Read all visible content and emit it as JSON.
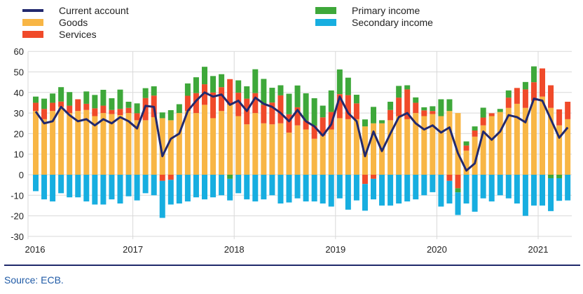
{
  "chart_data": {
    "type": "bar",
    "stacked": true,
    "title": "",
    "xlabel": "",
    "ylabel": "",
    "ylim": [
      -30,
      60
    ],
    "yticks": [
      -30,
      -20,
      -10,
      0,
      10,
      20,
      30,
      40,
      50,
      60
    ],
    "xtick_labels": [
      "2016",
      "2017",
      "2018",
      "2019",
      "2020",
      "2021"
    ],
    "frequency": "monthly, Jan 2016 – Apr 2021",
    "grid": true,
    "legend": {
      "placement": "top",
      "entries": [
        "Current account",
        "Goods",
        "Services",
        "Primary income",
        "Secondary income"
      ]
    },
    "colors": {
      "current_account": "#22296e",
      "goods": "#f8b645",
      "services": "#f04a2a",
      "primary": "#3ea83a",
      "secondary": "#17aee0"
    },
    "series": [
      {
        "name": "Goods",
        "kind": "bar",
        "values": [
          31,
          27,
          31,
          33,
          30,
          31,
          31.5,
          28.5,
          30,
          29.5,
          29,
          30,
          26.5,
          26.5,
          28,
          27.5,
          26.5,
          30,
          31,
          30,
          34,
          27.5,
          31,
          34,
          28.5,
          24.5,
          30,
          25,
          24.5,
          25,
          20.5,
          24,
          22,
          17.5,
          19,
          22,
          27.5,
          27,
          27,
          23.5,
          25,
          25,
          26.5,
          28.5,
          27,
          30,
          28.5,
          29.5,
          28.5,
          31,
          30,
          11.7,
          18.5,
          24,
          28.5,
          30.5,
          32.5,
          34.5,
          32.5,
          36,
          38,
          32.5,
          24,
          27
        ]
      },
      {
        "name": "Services",
        "kind": "bar",
        "values": [
          4,
          5,
          4,
          2.6,
          3.6,
          5.7,
          3,
          3.8,
          3.6,
          2,
          3,
          2.5,
          3.4,
          10.8,
          10.5,
          -3,
          -2.5,
          0,
          7.4,
          9.7,
          10,
          12.5,
          11.6,
          12.5,
          11.4,
          12.5,
          9.7,
          9,
          10.6,
          13.6,
          8.9,
          8.8,
          4.3,
          6.3,
          8.9,
          8.5,
          11.7,
          11.7,
          7.7,
          -4.5,
          -2,
          0,
          5,
          9,
          14.5,
          5,
          2.8,
          1.5,
          0,
          -3,
          -6.6,
          2.5,
          3,
          3.8,
          1.4,
          0,
          5,
          7.7,
          9,
          9,
          13.7,
          11,
          7.8,
          8.5
        ]
      },
      {
        "name": "Primary income",
        "kind": "bar",
        "values": [
          3,
          5,
          4.5,
          7,
          6.6,
          0,
          6,
          6.5,
          7.7,
          5.7,
          9.4,
          3,
          4.8,
          4.8,
          4.5,
          2.8,
          4.9,
          4.3,
          6,
          7.7,
          8.5,
          8,
          6.3,
          -2,
          6,
          6,
          11.6,
          12.6,
          7.2,
          4.9,
          10,
          10.6,
          13.3,
          13.4,
          5.7,
          10.5,
          12,
          8.5,
          4.2,
          3.4,
          8,
          1.5,
          4,
          5.7,
          2,
          2.6,
          1.5,
          2.3,
          8.2,
          5.7,
          -2,
          2,
          2,
          4.8,
          0,
          1.5,
          3.5,
          0,
          3.6,
          7.7,
          0,
          -1.7,
          -1.7,
          0
        ]
      },
      {
        "name": "Secondary income",
        "kind": "bar",
        "values": [
          -8,
          -12,
          -13,
          -9,
          -11,
          -11,
          -13,
          -14.5,
          -14.5,
          -12,
          -14,
          -10.5,
          -12.5,
          -9,
          -10,
          -18,
          -12,
          -14,
          -13,
          -11,
          -12,
          -11,
          -10,
          -10.5,
          -9,
          -12,
          -13,
          -12,
          -10,
          -14,
          -13.5,
          -11.5,
          -13,
          -13,
          -14,
          -15.5,
          -11.5,
          -17,
          -12.5,
          -13,
          -10,
          -15,
          -15,
          -14,
          -13,
          -12,
          -10,
          -8.5,
          -15.5,
          -11,
          -11,
          -14,
          -18,
          -11.5,
          -13,
          -10,
          -11.5,
          -14,
          -20,
          -15,
          -15,
          -16,
          -11,
          -12.5
        ]
      },
      {
        "name": "Current account",
        "kind": "line",
        "values": [
          30.7,
          25,
          26,
          33,
          29,
          26,
          27,
          24,
          27,
          25,
          28,
          26,
          22.5,
          33.5,
          33,
          9,
          17.5,
          20,
          31,
          36,
          40,
          38,
          39,
          34,
          36,
          31,
          37.5,
          34.5,
          33,
          30,
          26,
          31.5,
          26,
          23.5,
          19,
          24.5,
          38,
          30,
          26,
          9,
          21,
          11.5,
          20,
          28,
          30,
          25,
          22,
          24,
          20.5,
          23,
          10.5,
          2,
          5.5,
          21,
          17,
          21,
          29,
          28,
          25.5,
          37,
          36,
          27,
          18,
          23
        ]
      }
    ]
  },
  "legend": {
    "current_account": "Current account",
    "goods": "Goods",
    "services": "Services",
    "primary": "Primary income",
    "secondary": "Secondary income"
  },
  "source": "Source: ECB."
}
